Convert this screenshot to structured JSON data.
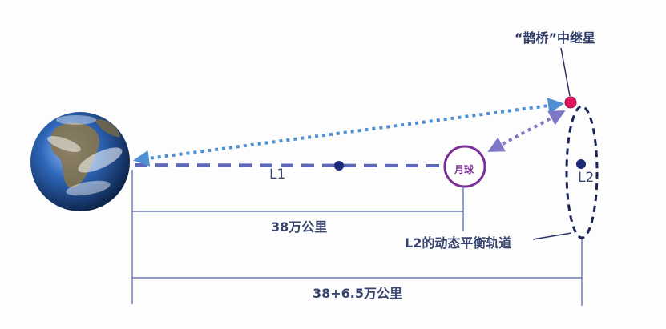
{
  "labels": {
    "relay": "“鹊桥”中继星",
    "l1": "L1",
    "moon": "月球",
    "l2": "L2",
    "earth_moon_distance": "38万公里",
    "halo_orbit": "L2的动态平衡轨道",
    "total_distance": "38+6.5万公里"
  },
  "colors": {
    "earth_ocean": "#1f4f97",
    "earth_land": "#6b5a3c",
    "relay_dot": "#e0155f",
    "moon_ring": "#7b2f96",
    "lagrange_point": "#1e2a78",
    "link_blue": "#4e90d2",
    "link_purple": "#7d77c6",
    "dash_line": "#5f67b8",
    "dim_line": "#4f5fa8"
  }
}
